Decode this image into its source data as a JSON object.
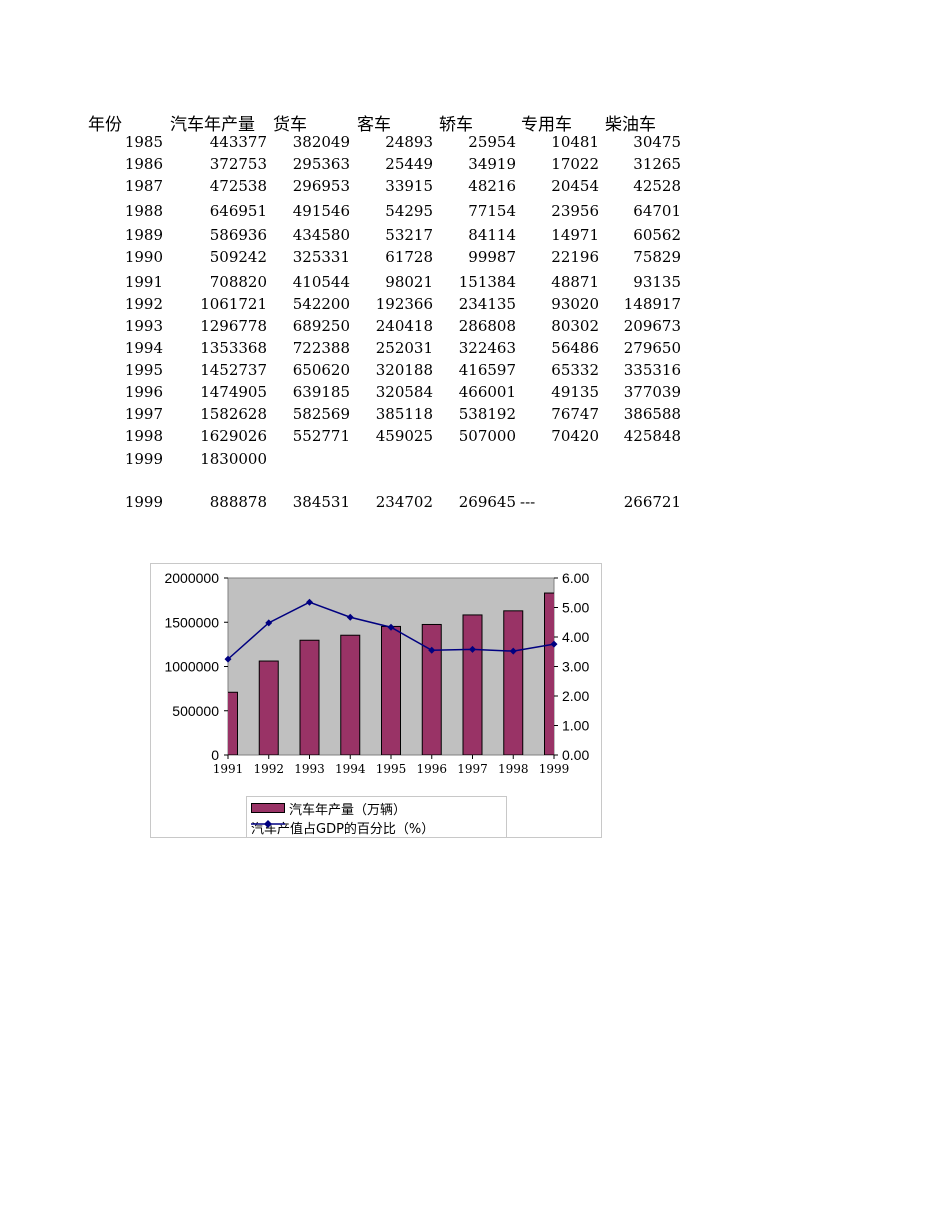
{
  "table": {
    "headers": [
      "年份",
      "汽车年产量",
      "货车",
      "客车",
      "轿车",
      "专用车",
      "柴油车"
    ],
    "rows": [
      [
        "1985",
        "443377",
        "382049",
        "24893",
        "25954",
        "10481",
        "30475"
      ],
      [
        "1986",
        "372753",
        "295363",
        "25449",
        "34919",
        "17022",
        "31265"
      ],
      [
        "1987",
        "472538",
        "296953",
        "33915",
        "48216",
        "20454",
        "42528"
      ],
      [
        "1988",
        "646951",
        "491546",
        "54295",
        "77154",
        "23956",
        "64701"
      ],
      [
        "1989",
        "586936",
        "434580",
        "53217",
        "84114",
        "14971",
        "60562"
      ],
      [
        "1990",
        "509242",
        "325331",
        "61728",
        "99987",
        "22196",
        "75829"
      ],
      [
        "1991",
        "708820",
        "410544",
        "98021",
        "151384",
        "48871",
        "93135"
      ],
      [
        "1992",
        "1061721",
        "542200",
        "192366",
        "234135",
        "93020",
        "148917"
      ],
      [
        "1993",
        "1296778",
        "689250",
        "240418",
        "286808",
        "80302",
        "209673"
      ],
      [
        "1994",
        "1353368",
        "722388",
        "252031",
        "322463",
        "56486",
        "279650"
      ],
      [
        "1995",
        "1452737",
        "650620",
        "320188",
        "416597",
        "65332",
        "335316"
      ],
      [
        "1996",
        "1474905",
        "639185",
        "320584",
        "466001",
        "49135",
        "377039"
      ],
      [
        "1997",
        "1582628",
        "582569",
        "385118",
        "538192",
        "76747",
        "386588"
      ],
      [
        "1998",
        "1629026",
        "552771",
        "459025",
        "507000",
        "70420",
        "425848"
      ],
      [
        "1999",
        "1830000",
        "",
        "",
        "",
        "",
        ""
      ],
      [
        "1999",
        "888878",
        "384531",
        "234702",
        "269645",
        "---",
        "266721"
      ]
    ]
  },
  "chart_data": {
    "type": "bar",
    "categories": [
      "1991",
      "1992",
      "1993",
      "1994",
      "1995",
      "1996",
      "1997",
      "1998",
      "1999"
    ],
    "series": [
      {
        "name": "汽车年产量（万辆）",
        "type": "bar",
        "axis": "left",
        "color": "#993366",
        "values": [
          708820,
          1061721,
          1296778,
          1353368,
          1452737,
          1474905,
          1582628,
          1629026,
          1830000
        ]
      },
      {
        "name": "汽车产值占GDP的百分比（%）",
        "type": "line",
        "axis": "right",
        "color": "#000080",
        "values": [
          3.25,
          4.48,
          5.18,
          4.67,
          4.33,
          3.55,
          3.58,
          3.52,
          3.76
        ]
      }
    ],
    "y_left": {
      "ylim": [
        0,
        2000000
      ],
      "ticks": [
        "0",
        "500000",
        "1000000",
        "1500000",
        "2000000"
      ]
    },
    "y_right": {
      "ylim": [
        0,
        6
      ],
      "ticks": [
        "0.00",
        "1.00",
        "2.00",
        "3.00",
        "4.00",
        "5.00",
        "6.00"
      ]
    },
    "plot_background": "#c0c0c0",
    "legend_position": "bottom",
    "grid": false
  }
}
